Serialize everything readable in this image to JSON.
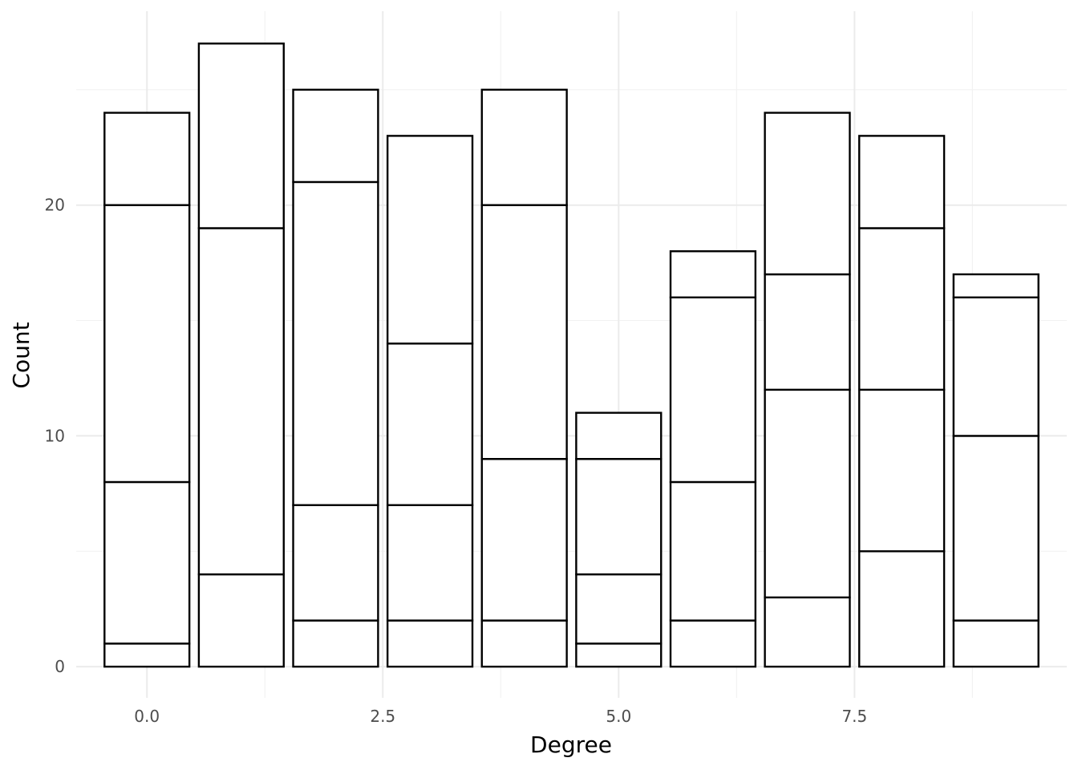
{
  "chart_data": {
    "type": "bar",
    "stacked": true,
    "title": "",
    "xlabel": "Degree",
    "ylabel": "Count",
    "x": [
      0,
      1,
      2,
      3,
      4,
      5,
      6,
      7,
      8,
      9
    ],
    "segment_boundaries": [
      [
        0,
        1,
        8,
        20,
        24
      ],
      [
        0,
        4,
        19,
        27
      ],
      [
        0,
        2,
        7,
        21,
        25
      ],
      [
        0,
        2,
        7,
        14,
        23
      ],
      [
        0,
        2,
        9,
        20,
        25
      ],
      [
        0,
        1,
        4,
        9,
        11
      ],
      [
        0,
        2,
        8,
        16,
        18
      ],
      [
        0,
        3,
        12,
        17,
        24
      ],
      [
        0,
        5,
        12,
        19,
        23
      ],
      [
        0,
        2,
        10,
        16,
        17
      ]
    ],
    "totals": [
      24,
      27,
      25,
      23,
      25,
      11,
      18,
      24,
      23,
      17
    ],
    "xlim": [
      -0.75,
      9.75
    ],
    "ylim": [
      -1.35,
      28.4
    ],
    "x_ticks": [
      0,
      2.5,
      5,
      7.5
    ],
    "x_tick_labels": [
      "0.0",
      "2.5",
      "5.0",
      "7.5"
    ],
    "y_ticks": [
      0,
      10,
      20
    ],
    "y_tick_labels": [
      "0",
      "10",
      "20"
    ],
    "grid": true,
    "bar_fill": "#ffffff",
    "bar_stroke": "#000000",
    "legend": "none"
  }
}
